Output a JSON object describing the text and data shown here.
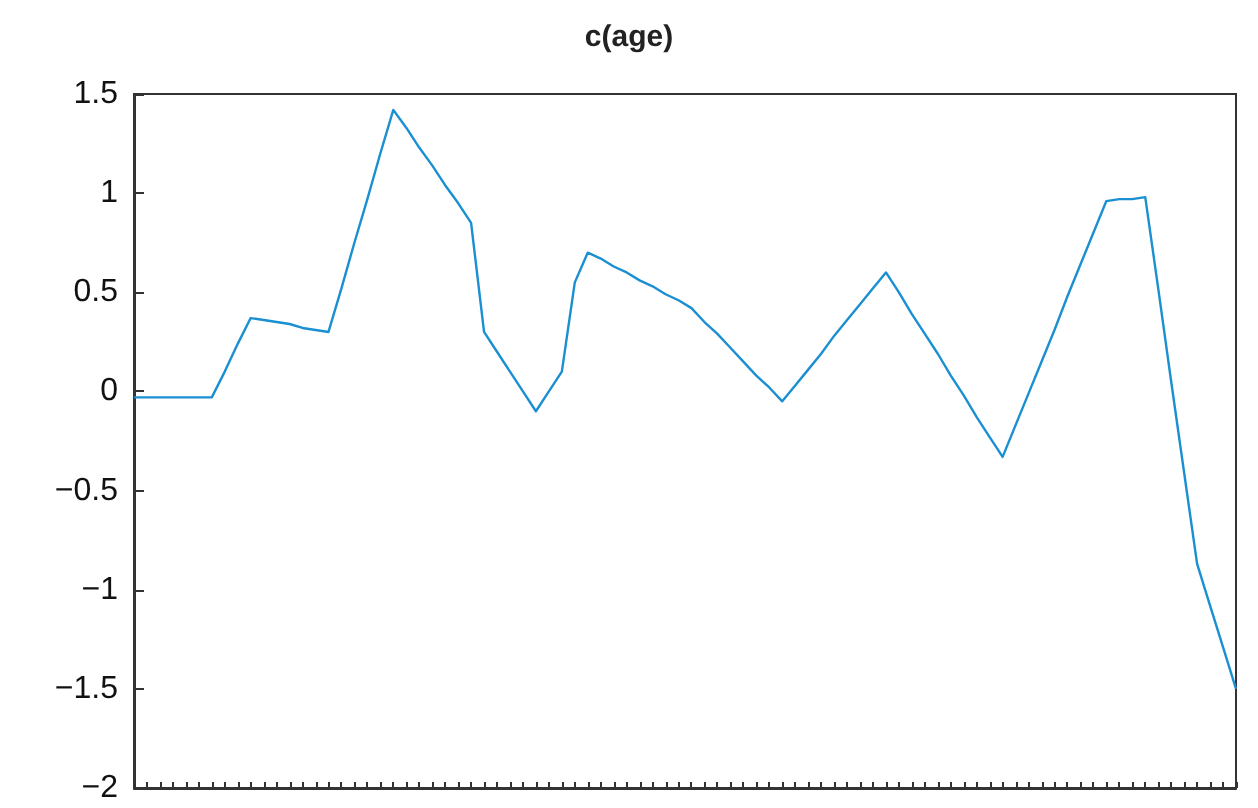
{
  "chart_data": {
    "type": "line",
    "title": "c(age)",
    "categories": [
      null,
      null,
      null,
      null,
      null,
      null,
      null,
      null,
      null,
      null,
      null,
      null,
      null,
      null,
      null,
      null,
      null,
      null,
      null,
      null,
      null,
      null,
      null,
      null,
      null,
      null,
      null,
      null,
      null,
      null,
      null,
      null,
      null,
      null,
      null,
      null,
      null,
      null,
      null,
      null,
      null,
      null,
      null,
      null,
      null,
      null,
      null,
      null,
      null,
      null,
      null,
      null,
      null,
      null,
      null,
      null,
      null,
      null,
      null,
      null,
      null,
      null,
      null,
      null,
      null,
      null,
      null,
      null,
      null,
      null,
      null,
      null,
      null,
      null,
      null,
      null,
      null,
      null,
      null,
      null,
      null,
      null,
      null,
      null,
      null,
      null
    ],
    "values": [
      -0.03,
      -0.03,
      -0.03,
      -0.03,
      -0.03,
      -0.03,
      -0.03,
      0.1,
      0.24,
      0.37,
      0.36,
      0.35,
      0.34,
      0.32,
      0.31,
      0.3,
      0.52,
      0.75,
      0.97,
      1.2,
      1.42,
      1.33,
      1.23,
      1.14,
      1.04,
      0.95,
      0.85,
      0.3,
      0.2,
      0.1,
      0.0,
      -0.1,
      0.0,
      0.1,
      0.55,
      0.7,
      0.67,
      0.63,
      0.6,
      0.56,
      0.53,
      0.49,
      0.46,
      0.42,
      0.35,
      0.29,
      0.22,
      0.15,
      0.08,
      0.02,
      -0.05,
      0.03,
      0.11,
      0.19,
      0.28,
      0.36,
      0.44,
      0.52,
      0.6,
      0.5,
      0.39,
      0.29,
      0.19,
      0.08,
      -0.02,
      -0.13,
      -0.23,
      -0.33,
      -0.17,
      -0.01,
      0.15,
      0.31,
      0.48,
      0.64,
      0.8,
      0.96,
      0.97,
      0.97,
      0.98,
      0.52,
      0.05,
      -0.41,
      -0.87,
      -1.08,
      -1.29,
      -1.5
    ],
    "color": "#1a8fd1",
    "ylim": [
      -2,
      1.5
    ],
    "yticks": [
      {
        "value": -2,
        "label": "−2"
      },
      {
        "value": -1.5,
        "label": "−1.5"
      },
      {
        "value": -1,
        "label": "−1"
      },
      {
        "value": -0.5,
        "label": "−0.5"
      },
      0,
      0.5,
      1,
      1.5
    ],
    "tick_labels": "y"
  }
}
